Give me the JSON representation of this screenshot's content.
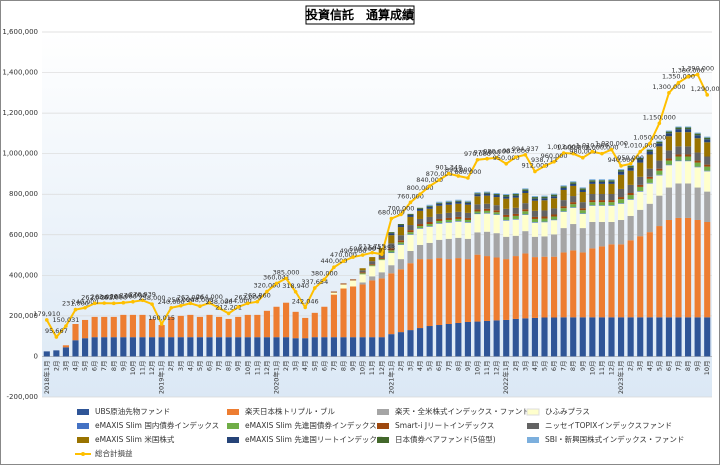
{
  "chart_data": {
    "type": "stacked-bar-line",
    "title": "投資信託　通算成績",
    "categories": [
      "2018年1月",
      "2月",
      "3月",
      "4月",
      "5月",
      "6月",
      "7月",
      "8月",
      "9月",
      "10月",
      "11月",
      "12月",
      "2019年1月",
      "2月",
      "3月",
      "4月",
      "5月",
      "6月",
      "7月",
      "8月",
      "9月",
      "10月",
      "11月",
      "12月",
      "2020年1月",
      "2月",
      "3月",
      "4月",
      "5月",
      "6月",
      "7月",
      "8月",
      "9月",
      "10月",
      "11月",
      "12月",
      "2021年1月",
      "2月",
      "3月",
      "4月",
      "5月",
      "6月",
      "7月",
      "8月",
      "9月",
      "10月",
      "11月",
      "12月",
      "2022年1月",
      "2月",
      "3月",
      "4月",
      "5月",
      "6月",
      "7月",
      "8月",
      "9月",
      "10月",
      "11月",
      "12月",
      "2023年1月",
      "2月",
      "3月",
      "4月",
      "5月",
      "6月",
      "7月",
      "8月",
      "9月",
      "10月"
    ],
    "ylim": [
      -200000,
      1600000
    ],
    "yticks": [
      {
        "value": -200000,
        "label": "-200,000"
      },
      0,
      {
        "value": 200000,
        "label": "200,000"
      },
      {
        "value": 400000,
        "label": "400,000"
      },
      {
        "value": 600000,
        "label": "600,000"
      },
      {
        "value": 800000,
        "label": "800,000"
      },
      {
        "value": 1000000,
        "label": "1,000,000"
      },
      {
        "value": 1200000,
        "label": "1,200,000"
      },
      {
        "value": 1400000,
        "label": "1,400,000"
      },
      {
        "value": 1600000,
        "label": "1,600,000"
      }
    ],
    "grid": true,
    "series": [
      {
        "name": "UBS原油先物ファンド",
        "color": "#2f5597",
        "values": [
          25000,
          30000,
          45000,
          80000,
          90000,
          95000,
          95000,
          95000,
          95000,
          95000,
          95000,
          95000,
          95000,
          95000,
          95000,
          95000,
          95000,
          95000,
          95000,
          95000,
          95000,
          95000,
          95000,
          95000,
          95000,
          95000,
          90000,
          90000,
          95000,
          95000,
          95000,
          95000,
          95000,
          95000,
          95000,
          95000,
          110000,
          120000,
          130000,
          140000,
          150000,
          155000,
          160000,
          165000,
          170000,
          172000,
          175000,
          178000,
          180000,
          185000,
          188000,
          190000,
          192000,
          192000,
          193000,
          193000,
          193000,
          193000,
          193000,
          193000,
          193000,
          193000,
          193000,
          193000,
          193000,
          193000,
          193000,
          193000,
          193000,
          193000
        ]
      },
      {
        "name": "楽天日本株トリプル・ブル",
        "color": "#ed7d31",
        "values": [
          0,
          0,
          10000,
          80000,
          90000,
          100000,
          100000,
          100000,
          110000,
          110000,
          110000,
          90000,
          60000,
          100000,
          105000,
          110000,
          100000,
          110000,
          100000,
          90000,
          100000,
          110000,
          110000,
          130000,
          150000,
          170000,
          130000,
          100000,
          120000,
          150000,
          210000,
          240000,
          250000,
          260000,
          280000,
          290000,
          300000,
          310000,
          330000,
          340000,
          330000,
          330000,
          320000,
          320000,
          310000,
          330000,
          320000,
          310000,
          300000,
          310000,
          320000,
          300000,
          300000,
          300000,
          320000,
          330000,
          320000,
          340000,
          350000,
          360000,
          360000,
          380000,
          400000,
          420000,
          450000,
          480000,
          490000,
          490000,
          480000,
          470000
        ]
      },
      {
        "name": "楽天・全米株式インデックス・ファンド",
        "color": "#a5a5a5",
        "values": [
          0,
          0,
          0,
          0,
          0,
          0,
          0,
          0,
          0,
          0,
          0,
          0,
          0,
          0,
          0,
          0,
          0,
          0,
          0,
          0,
          0,
          0,
          0,
          0,
          0,
          0,
          0,
          0,
          0,
          0,
          0,
          0,
          0,
          10000,
          20000,
          30000,
          40000,
          50000,
          60000,
          70000,
          80000,
          90000,
          100000,
          100000,
          100000,
          110000,
          120000,
          120000,
          110000,
          100000,
          110000,
          100000,
          100000,
          110000,
          120000,
          130000,
          120000,
          130000,
          120000,
          110000,
          120000,
          120000,
          130000,
          140000,
          150000,
          160000,
          170000,
          170000,
          160000,
          150000
        ]
      },
      {
        "name": "ひふみプラス",
        "color": "#ffffcc",
        "values": [
          0,
          0,
          0,
          0,
          0,
          0,
          0,
          0,
          0,
          0,
          0,
          0,
          0,
          0,
          0,
          0,
          0,
          0,
          0,
          0,
          0,
          0,
          0,
          0,
          0,
          0,
          0,
          0,
          0,
          0,
          10000,
          20000,
          30000,
          40000,
          50000,
          60000,
          60000,
          70000,
          80000,
          80000,
          80000,
          80000,
          80000,
          80000,
          80000,
          90000,
          90000,
          90000,
          80000,
          80000,
          80000,
          70000,
          70000,
          70000,
          80000,
          80000,
          70000,
          80000,
          80000,
          80000,
          80000,
          80000,
          90000,
          100000,
          100000,
          110000,
          110000,
          110000,
          100000,
          100000
        ]
      },
      {
        "name": "eMAXIS Slim 国内債券インデックス",
        "color": "#4472c4",
        "values": [
          0,
          0,
          0,
          0,
          0,
          0,
          0,
          0,
          0,
          0,
          0,
          0,
          0,
          0,
          0,
          0,
          0,
          0,
          0,
          0,
          0,
          0,
          0,
          0,
          0,
          0,
          0,
          0,
          0,
          0,
          0,
          0,
          0,
          0,
          0,
          0,
          3000,
          3000,
          3000,
          3000,
          3000,
          3000,
          3000,
          3000,
          3000,
          3000,
          3000,
          3000,
          3000,
          3000,
          3000,
          3000,
          3000,
          3000,
          3000,
          3000,
          3000,
          3000,
          3000,
          3000,
          3000,
          3000,
          3000,
          3000,
          3000,
          3000,
          3000,
          3000,
          3000,
          3000
        ]
      },
      {
        "name": "eMAXIS Slim 先進国債券インデックス",
        "color": "#70ad47",
        "values": [
          0,
          0,
          0,
          0,
          0,
          0,
          0,
          0,
          0,
          0,
          0,
          0,
          0,
          0,
          0,
          0,
          0,
          0,
          0,
          0,
          0,
          0,
          0,
          0,
          0,
          0,
          0,
          0,
          0,
          0,
          0,
          0,
          0,
          5000,
          5000,
          5000,
          10000,
          10000,
          10000,
          10000,
          10000,
          10000,
          10000,
          10000,
          10000,
          10000,
          10000,
          10000,
          15000,
          15000,
          15000,
          15000,
          15000,
          15000,
          15000,
          15000,
          15000,
          15000,
          15000,
          15000,
          20000,
          20000,
          20000,
          20000,
          20000,
          20000,
          20000,
          20000,
          20000,
          20000
        ]
      },
      {
        "name": "Smart-i Jリートインデックス",
        "color": "#9e480e",
        "values": [
          0,
          0,
          0,
          0,
          0,
          0,
          0,
          0,
          0,
          0,
          0,
          0,
          0,
          0,
          0,
          0,
          0,
          0,
          0,
          0,
          0,
          0,
          0,
          0,
          0,
          0,
          0,
          0,
          0,
          0,
          5000,
          5000,
          5000,
          5000,
          5000,
          5000,
          10000,
          10000,
          10000,
          10000,
          10000,
          10000,
          10000,
          10000,
          10000,
          10000,
          10000,
          10000,
          10000,
          10000,
          10000,
          10000,
          10000,
          10000,
          10000,
          10000,
          10000,
          10000,
          10000,
          10000,
          10000,
          10000,
          10000,
          10000,
          10000,
          10000,
          10000,
          10000,
          10000,
          10000
        ]
      },
      {
        "name": "ニッセイTOPIXインデックスファンド",
        "color": "#636363",
        "values": [
          0,
          0,
          0,
          0,
          0,
          0,
          0,
          0,
          0,
          0,
          0,
          0,
          0,
          0,
          0,
          0,
          0,
          0,
          0,
          0,
          0,
          0,
          0,
          0,
          0,
          0,
          0,
          0,
          0,
          0,
          0,
          0,
          0,
          10000,
          15000,
          20000,
          25000,
          25000,
          25000,
          25000,
          25000,
          25000,
          25000,
          25000,
          25000,
          25000,
          25000,
          25000,
          30000,
          30000,
          30000,
          30000,
          30000,
          30000,
          30000,
          30000,
          30000,
          30000,
          30000,
          30000,
          40000,
          40000,
          40000,
          40000,
          40000,
          40000,
          40000,
          40000,
          40000,
          40000
        ]
      },
      {
        "name": "eMAXIS Slim 米国株式",
        "color": "#997300",
        "values": [
          0,
          0,
          0,
          0,
          0,
          0,
          0,
          0,
          0,
          0,
          0,
          0,
          0,
          0,
          0,
          0,
          0,
          0,
          0,
          0,
          0,
          0,
          0,
          0,
          0,
          0,
          0,
          0,
          0,
          0,
          0,
          0,
          0,
          10000,
          20000,
          30000,
          40000,
          40000,
          40000,
          40000,
          40000,
          40000,
          40000,
          40000,
          40000,
          40000,
          40000,
          40000,
          50000,
          50000,
          50000,
          50000,
          50000,
          50000,
          50000,
          50000,
          50000,
          50000,
          50000,
          50000,
          70000,
          70000,
          70000,
          70000,
          70000,
          70000,
          70000,
          70000,
          70000,
          70000
        ]
      },
      {
        "name": "eMAXIS Slim 先進国リートインデックス",
        "color": "#264478",
        "values": [
          0,
          0,
          0,
          0,
          0,
          0,
          0,
          0,
          0,
          0,
          0,
          0,
          0,
          0,
          0,
          0,
          0,
          0,
          0,
          0,
          0,
          0,
          0,
          0,
          0,
          0,
          0,
          0,
          0,
          0,
          0,
          0,
          0,
          0,
          0,
          0,
          10000,
          10000,
          10000,
          10000,
          10000,
          10000,
          10000,
          10000,
          10000,
          10000,
          10000,
          10000,
          10000,
          10000,
          10000,
          10000,
          10000,
          10000,
          10000,
          10000,
          10000,
          10000,
          10000,
          10000,
          15000,
          15000,
          15000,
          15000,
          15000,
          15000,
          15000,
          15000,
          15000,
          15000
        ]
      },
      {
        "name": "日本債券ベアファンド(5倍型)",
        "color": "#43682b",
        "values": [
          0,
          0,
          0,
          0,
          0,
          0,
          0,
          0,
          0,
          0,
          0,
          0,
          0,
          0,
          0,
          0,
          0,
          0,
          0,
          0,
          0,
          0,
          0,
          0,
          0,
          0,
          0,
          0,
          0,
          0,
          0,
          0,
          0,
          0,
          0,
          0,
          5000,
          5000,
          5000,
          5000,
          5000,
          5000,
          5000,
          5000,
          5000,
          5000,
          5000,
          5000,
          8000,
          8000,
          8000,
          8000,
          8000,
          8000,
          8000,
          8000,
          8000,
          8000,
          8000,
          8000,
          8000,
          8000,
          8000,
          8000,
          8000,
          8000,
          8000,
          8000,
          8000,
          8000
        ]
      },
      {
        "name": "SBI・新興国株式インデックス・ファンド",
        "color": "#7cafdd",
        "values": [
          0,
          0,
          0,
          0,
          0,
          0,
          0,
          0,
          0,
          0,
          0,
          0,
          0,
          0,
          0,
          0,
          0,
          0,
          0,
          0,
          0,
          0,
          0,
          0,
          0,
          0,
          0,
          0,
          0,
          0,
          0,
          0,
          0,
          0,
          0,
          0,
          0,
          0,
          0,
          0,
          5000,
          5000,
          5000,
          5000,
          5000,
          5000,
          5000,
          5000,
          5000,
          5000,
          5000,
          5000,
          5000,
          5000,
          5000,
          5000,
          5000,
          5000,
          5000,
          5000,
          5000,
          5000,
          5000,
          5000,
          5000,
          5000,
          5000,
          5000,
          5000,
          5000
        ]
      },
      {
        "name": "総合計損益",
        "type": "line",
        "color": "#ffc000",
        "values": [
          179910,
          95667,
          150031,
          231000,
          240000,
          262000,
          263000,
          262000,
          265000,
          270000,
          276939,
          258000,
          160015,
          240000,
          250000,
          262000,
          248000,
          264000,
          238000,
          212201,
          244000,
          262000,
          269860,
          320000,
          360041,
          385000,
          318940,
          242046,
          337654,
          380000,
          440000,
          470000,
          490000,
          500000,
          511755,
          504353,
          680000,
          700000,
          760000,
          800000,
          840000,
          870000,
          901348,
          890000,
          880000,
          970000,
          975000,
          980000,
          950000,
          983000,
          994337,
          912000,
          938711,
          960000,
          1003000,
          1000000,
          980000,
          1010000,
          1000000,
          1020000,
          940000,
          950000,
          1010000,
          1050000,
          1150000,
          1300000,
          1350000,
          1380000,
          1390000,
          1290000
        ],
        "value_labels": [
          "179,910",
          "95,667",
          "150,031",
          "231,000",
          "240,000",
          "262,000",
          "263,000",
          "262,000",
          "265,000",
          "270,000",
          "276,939",
          "258,000",
          "160,015",
          "240,000",
          "250,000",
          "262,000",
          "248,000",
          "264,000",
          "238,000",
          "212,201",
          "244,000",
          "262,000",
          "269,860",
          "320,000",
          "360,041",
          "385,000",
          "318,940",
          "242,046",
          "337,654",
          "380,000",
          "440,000",
          "470,000",
          "490,000",
          "500,000",
          "511,755",
          "504,353",
          "680,000",
          "700,000",
          "760,000",
          "800,000",
          "840,000",
          "870,000",
          "901,348",
          "890,000",
          "880,000",
          "970,000",
          "975,000",
          "980,000",
          "950,000",
          "983,000",
          "994,337",
          "912,000",
          "938,711",
          "960,000",
          "1,003,000",
          "1,000,000",
          "980,000",
          "1,010,000",
          "1,000,000",
          "1,020,000",
          "940,000",
          "950,000",
          "1,010,000",
          "1,050,000",
          "1,150,000",
          "1,300,000",
          "1,350,000",
          "1,380,000",
          "1,390,000",
          "1,290,000"
        ]
      }
    ]
  }
}
